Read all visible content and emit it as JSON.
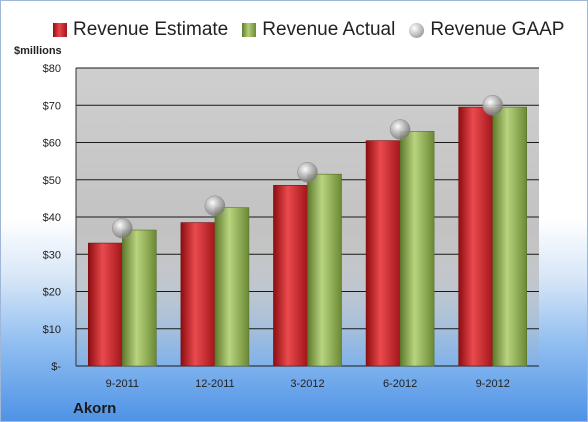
{
  "legend": {
    "estimate": "Revenue Estimate",
    "actual": "Revenue Actual",
    "gaap": "Revenue GAAP"
  },
  "units_label": "$millions",
  "company": "Akorn",
  "colors": {
    "estimate": "#c8191f",
    "actual": "#8aa64c",
    "gaap": "#a9a9a9"
  },
  "chart_data": {
    "type": "bar",
    "categories": [
      "9-2011",
      "12-2011",
      "3-2012",
      "6-2012",
      "9-2012"
    ],
    "series": [
      {
        "name": "Revenue Estimate",
        "values": [
          33,
          38.5,
          48.5,
          60.5,
          69.5
        ]
      },
      {
        "name": "Revenue Actual",
        "values": [
          36.5,
          42.5,
          51.5,
          63,
          69.5
        ]
      },
      {
        "name": "Revenue GAAP",
        "values": [
          37,
          43,
          52,
          63.5,
          70
        ]
      }
    ],
    "ylabel": "$millions",
    "ylim": [
      0,
      80
    ],
    "yticks": [
      0,
      10,
      20,
      30,
      40,
      50,
      60,
      70,
      80
    ],
    "ytick_labels": [
      "$-",
      "$10",
      "$20",
      "$30",
      "$40",
      "$50",
      "$60",
      "$70",
      "$80"
    ],
    "grid": true,
    "legend_position": "top"
  }
}
